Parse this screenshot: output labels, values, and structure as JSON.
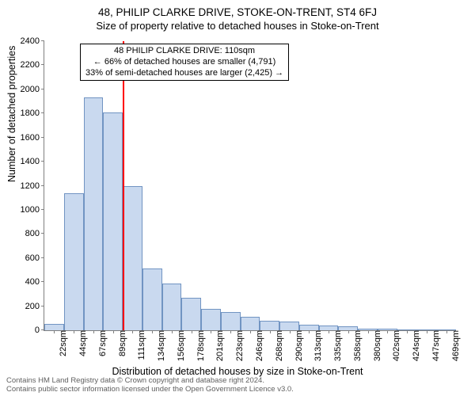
{
  "titles": {
    "main": "48, PHILIP CLARKE DRIVE, STOKE-ON-TRENT, ST4 6FJ",
    "sub": "Size of property relative to detached houses in Stoke-on-Trent"
  },
  "axis": {
    "ylabel": "Number of detached properties",
    "xlabel": "Distribution of detached houses by size in Stoke-on-Trent",
    "ylim": [
      0,
      2400
    ],
    "label_fontsize": 12.5,
    "tick_fontsize": 11
  },
  "chart": {
    "type": "histogram",
    "background_color": "#ffffff",
    "axis_color": "#808080",
    "bar_fill_color": "#c7d7ef",
    "bar_border_color": "#6a8fbf",
    "bar_opacity": 0.95,
    "categories": [
      "22sqm",
      "44sqm",
      "67sqm",
      "89sqm",
      "111sqm",
      "134sqm",
      "156sqm",
      "178sqm",
      "201sqm",
      "223sqm",
      "246sqm",
      "268sqm",
      "290sqm",
      "313sqm",
      "335sqm",
      "358sqm",
      "380sqm",
      "402sqm",
      "424sqm",
      "447sqm",
      "469sqm"
    ],
    "values": [
      50,
      1140,
      1930,
      1810,
      1200,
      510,
      390,
      270,
      180,
      150,
      110,
      80,
      70,
      45,
      40,
      30,
      15,
      10,
      5,
      3,
      2
    ],
    "yticks": [
      0,
      200,
      400,
      600,
      800,
      1000,
      1200,
      1400,
      1600,
      1800,
      2000,
      2200,
      2400
    ]
  },
  "reference_line": {
    "bin_index": 4,
    "color": "#ff0000",
    "width": 2
  },
  "annotation": {
    "line1": "48 PHILIP CLARKE DRIVE: 110sqm",
    "line2": "← 66% of detached houses are smaller (4,791)",
    "line3": "33% of semi-detached houses are larger (2,425) →",
    "box_border": "#000000",
    "box_bg": "#ffffff",
    "fontsize": 11
  },
  "footer": {
    "line1": "Contains HM Land Registry data © Crown copyright and database right 2024.",
    "line2": "Contains public sector information licensed under the Open Government Licence v3.0.",
    "color": "#606060",
    "fontsize": 9.5
  }
}
